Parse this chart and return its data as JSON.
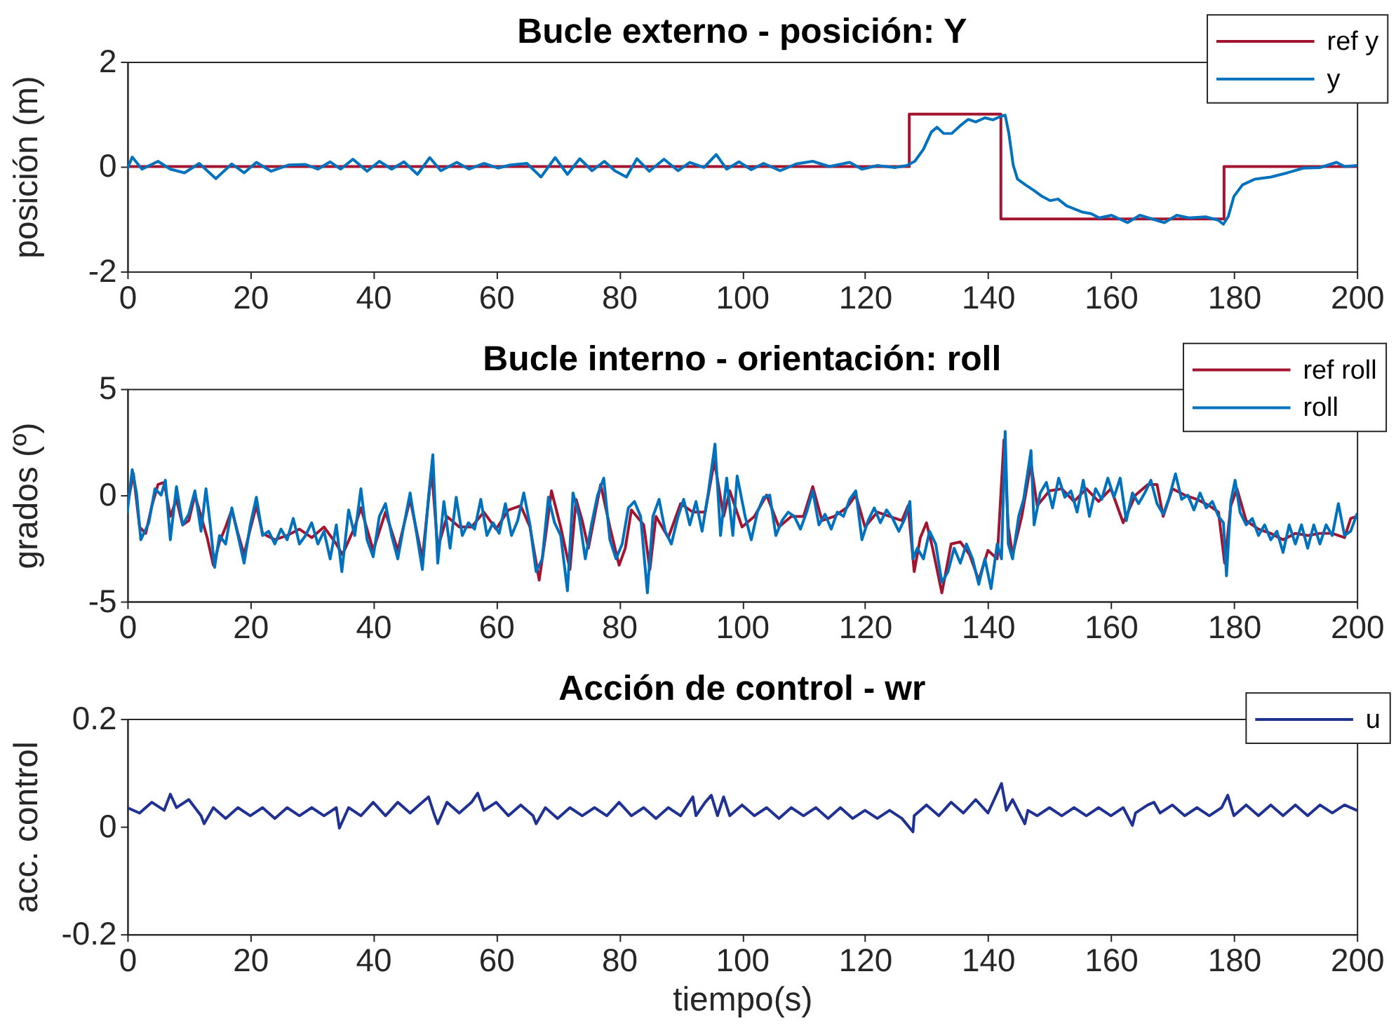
{
  "chart_data": [
    {
      "type": "line",
      "title": "Bucle externo - posición: Y",
      "ylabel": "posición (m)",
      "xlim": [
        0,
        200
      ],
      "xticks": [
        0,
        20,
        40,
        60,
        80,
        100,
        120,
        140,
        160,
        180,
        200
      ],
      "ylim": [
        -2,
        2
      ],
      "yticks": [
        -2,
        0,
        2
      ],
      "legend": "top right",
      "series": [
        {
          "name": "ref y",
          "type": "step",
          "color": "#a2142f",
          "x": [
            0,
            127.2,
            142.1,
            178.4,
            200
          ],
          "values": [
            0,
            1,
            -1,
            0,
            0
          ]
        },
        {
          "name": "y",
          "type": "line",
          "color": "#0072bd",
          "x": [
            0,
            0.8,
            2.4,
            5,
            7,
            9.3,
            11.7,
            14.4,
            17,
            19,
            21,
            23.4,
            26.3,
            29,
            31,
            33,
            34.7,
            36.7,
            39,
            41,
            43,
            45,
            47.2,
            49.2,
            51,
            53.6,
            55.6,
            58,
            60.3,
            62.3,
            65,
            67.3,
            69.6,
            71.6,
            73.6,
            75.6,
            77.6,
            79.3,
            81.2,
            82.9,
            84.9,
            87.3,
            89.6,
            91.5,
            93.8,
            95.8,
            97.5,
            99.5,
            101.5,
            103.5,
            106.2,
            108.8,
            111.5,
            114.2,
            117.5,
            119.5,
            122,
            124.8,
            126.8,
            128.1,
            129.5,
            130.8,
            131.7,
            132.8,
            134.1,
            135.5,
            136.8,
            138,
            139.5,
            140.8,
            142.1,
            142.8,
            143.4,
            144.1,
            144.8,
            146.1,
            147.4,
            148.8,
            150.1,
            151.4,
            152.8,
            154.1,
            155.4,
            156.8,
            158.1,
            160.1,
            162.7,
            164.7,
            166.7,
            168.7,
            170.7,
            172.7,
            175.4,
            177.4,
            178.3,
            179.1,
            180,
            181.4,
            183.4,
            186,
            188.7,
            191.3,
            194,
            196.7,
            198,
            200
          ],
          "values": [
            -0.05,
            0.18,
            -0.05,
            0.1,
            -0.05,
            -0.12,
            0.06,
            -0.23,
            0.05,
            -0.12,
            0.08,
            -0.09,
            0.03,
            0.04,
            -0.05,
            0.09,
            -0.05,
            0.14,
            -0.09,
            0.1,
            -0.05,
            0.09,
            -0.15,
            0.17,
            -0.08,
            0.08,
            -0.05,
            0.06,
            -0.03,
            0.03,
            0.06,
            -0.2,
            0.17,
            -0.15,
            0.15,
            -0.08,
            0.1,
            -0.08,
            -0.2,
            0.15,
            -0.09,
            0.14,
            -0.08,
            0.08,
            -0.02,
            0.23,
            -0.05,
            0.09,
            -0.06,
            0.06,
            -0.08,
            0.05,
            0.1,
            0,
            0.08,
            -0.05,
            0.02,
            -0.02,
            0.02,
            0.1,
            0.33,
            0.66,
            0.75,
            0.63,
            0.63,
            0.78,
            0.9,
            0.85,
            0.93,
            0.89,
            0.96,
            0.98,
            0.63,
            0.03,
            -0.24,
            -0.35,
            -0.45,
            -0.57,
            -0.65,
            -0.62,
            -0.75,
            -0.81,
            -0.87,
            -0.9,
            -0.98,
            -0.93,
            -1.07,
            -0.93,
            -1.0,
            -1.07,
            -0.93,
            -0.98,
            -0.96,
            -1.02,
            -1.1,
            -0.95,
            -0.57,
            -0.35,
            -0.24,
            -0.2,
            -0.12,
            -0.03,
            -0.02,
            0.08,
            0,
            0.02
          ]
        }
      ]
    },
    {
      "type": "line",
      "title": "Bucle interno - orientación: roll",
      "ylabel": "grados (º)",
      "xlim": [
        0,
        200
      ],
      "xticks": [
        0,
        20,
        40,
        60,
        80,
        100,
        120,
        140,
        160,
        180,
        200
      ],
      "ylim": [
        -5,
        5
      ],
      "yticks": [
        -5,
        0,
        5
      ],
      "legend": "top right",
      "series": [
        {
          "name": "ref roll",
          "type": "line",
          "color": "#a2142f",
          "x": [
            0,
            1,
            2,
            3,
            4,
            5,
            6,
            7,
            8,
            9,
            10,
            11,
            12,
            13,
            14,
            15,
            16,
            17,
            18,
            19,
            20,
            21,
            22,
            24,
            26,
            28,
            30,
            32,
            34,
            35,
            37,
            38,
            40,
            42,
            44,
            46,
            48,
            49.5,
            50.5,
            52,
            54,
            56,
            58,
            60,
            62,
            64,
            65.5,
            67,
            68,
            69,
            70.5,
            72,
            73,
            74,
            75,
            77,
            78.5,
            80,
            81,
            82,
            84,
            85,
            86,
            88,
            90,
            92,
            94,
            95.5,
            97,
            98,
            100,
            102,
            104,
            106,
            108,
            110,
            111.5,
            113,
            115,
            117,
            118.5,
            120,
            122,
            124,
            126,
            127,
            128,
            129,
            130,
            131,
            132.5,
            134,
            135.5,
            137,
            138.5,
            140,
            141.5,
            142.6,
            143.3,
            144,
            145.5,
            147,
            148,
            150,
            152,
            154,
            156,
            158,
            160,
            162,
            164,
            166,
            167.5,
            168.5,
            170,
            172,
            174,
            176,
            177.5,
            178.5,
            179.5,
            180.5,
            182,
            184,
            186,
            188,
            190,
            192,
            194,
            196,
            198,
            199,
            200
          ],
          "values": [
            -0.5,
            1.0,
            -1.5,
            -1.8,
            -0.5,
            0.5,
            0.6,
            -1.0,
            -0.2,
            -1.4,
            -1.2,
            0.0,
            -1.0,
            -2.0,
            -3.3,
            -2.2,
            -1.5,
            -0.7,
            -1.8,
            -2.8,
            -1.6,
            -0.5,
            -1.8,
            -2.1,
            -1.9,
            -1.6,
            -2.0,
            -1.5,
            -2.3,
            -2.8,
            -1.5,
            -0.6,
            -2.6,
            -0.8,
            -2.6,
            -0.2,
            -3.0,
            1.2,
            -2.5,
            -1.0,
            -1.5,
            -1.5,
            -0.8,
            -1.6,
            -0.7,
            -0.5,
            -1.5,
            -4.0,
            -2.0,
            0.2,
            -1.5,
            -3.5,
            -0.2,
            -1.2,
            -2.5,
            0.5,
            -1.5,
            -3.3,
            -2.5,
            -0.7,
            -1.4,
            -3.5,
            -1.0,
            -2.0,
            -0.4,
            -0.8,
            -0.8,
            1.6,
            -1.0,
            0.2,
            -1.5,
            -1.0,
            0.0,
            -1.5,
            -1.0,
            -1.0,
            0.4,
            -1.2,
            -1.0,
            -0.6,
            0.0,
            -1.5,
            -0.8,
            -1.0,
            -1.2,
            -0.5,
            -3.6,
            -2.0,
            -1.3,
            -2.5,
            -4.6,
            -2.3,
            -2.2,
            -2.8,
            -4.0,
            -2.6,
            -3.0,
            2.6,
            -1.5,
            -2.8,
            -1.0,
            1.5,
            -0.5,
            0.2,
            0.3,
            -0.3,
            0.3,
            -0.3,
            0.3,
            -1.3,
            0.0,
            0.5,
            0.5,
            -1.0,
            0.3,
            0.0,
            -0.2,
            -0.5,
            -0.8,
            -3.2,
            -0.5,
            0.3,
            -1.2,
            -1.6,
            -1.8,
            -2.1,
            -1.8,
            -1.9,
            -1.8,
            -1.8,
            -2.0,
            -1.1,
            -1.0
          ]
        },
        {
          "name": "roll",
          "type": "line",
          "color": "#0072bd",
          "x": [
            0,
            0.8,
            1.5,
            2.2,
            3.5,
            4.5,
            5.5,
            6.2,
            7,
            8,
            9,
            10,
            11,
            12,
            12.8,
            13.5,
            14.2,
            15,
            16,
            17,
            18,
            19,
            20,
            21,
            22,
            23,
            24,
            25,
            26,
            27,
            28,
            29,
            30,
            31,
            32,
            33,
            34,
            34.9,
            36,
            37,
            38,
            39,
            40,
            41,
            42,
            43,
            44,
            45,
            46,
            47,
            48,
            49,
            49.7,
            50.5,
            51.5,
            52.5,
            53.5,
            54.5,
            55.5,
            56.5,
            57.5,
            58.5,
            59.5,
            60.5,
            61.5,
            62.5,
            63.5,
            64.5,
            65.5,
            66.5,
            67.5,
            68.5,
            69.5,
            70.5,
            71.6,
            72.5,
            73.5,
            74.5,
            75.5,
            76.5,
            77.5,
            78.5,
            79.5,
            80.5,
            81.5,
            82.5,
            83.5,
            84.6,
            85.5,
            86.5,
            87.5,
            88.5,
            89.5,
            90.5,
            91.5,
            92.5,
            93.5,
            94.5,
            95.6,
            96.5,
            97.5,
            98.5,
            99.2,
            100.5,
            101.5,
            102.5,
            103.5,
            104.5,
            105.5,
            106.5,
            107.5,
            108.5,
            109.5,
            110.5,
            111.5,
            112.5,
            113.5,
            114.5,
            115.5,
            116.5,
            117.5,
            118.5,
            119.5,
            120.5,
            121.5,
            122.5,
            123.5,
            124.5,
            125.5,
            126.5,
            127.3,
            127.8,
            128.5,
            129.5,
            130.5,
            131.5,
            132.5,
            133.5,
            134.5,
            135.5,
            136.5,
            137.5,
            138.5,
            139.5,
            140.5,
            141.5,
            142.2,
            142.8,
            143.3,
            144,
            145,
            145.8,
            147,
            147.5,
            148.5,
            149.5,
            150.5,
            151.5,
            152.5,
            153.5,
            154.5,
            155.5,
            156.5,
            157.5,
            158.5,
            159.5,
            160.5,
            161.5,
            162.5,
            163.5,
            164.5,
            165.5,
            166.5,
            167.5,
            168.5,
            169.5,
            170.5,
            171.5,
            172.5,
            173.5,
            174.5,
            175.5,
            176.5,
            177.5,
            178.3,
            178.8,
            179.5,
            180.2,
            181,
            182,
            183,
            184,
            185,
            186,
            187,
            188,
            189,
            190,
            191,
            192,
            193,
            194,
            195,
            196,
            197,
            198,
            199,
            200
          ],
          "values": [
            -0.8,
            1.2,
            0.1,
            -2.1,
            -1.3,
            0.3,
            0,
            0.7,
            -2.1,
            0.4,
            -1.4,
            -0.9,
            0.2,
            -1.7,
            0.3,
            -1.4,
            -3.4,
            -1.9,
            -2.3,
            -0.6,
            -1.9,
            -3.2,
            -1.4,
            -0.1,
            -1.9,
            -1.7,
            -2.3,
            -1.6,
            -2.1,
            -1.1,
            -2.3,
            -1.9,
            -1.3,
            -2.3,
            -1.7,
            -3.0,
            -1.4,
            -3.6,
            -0.7,
            -1.9,
            0.3,
            -2.1,
            -2.9,
            -1.0,
            -0.4,
            -1.9,
            -3.0,
            -1.4,
            0.1,
            -1.7,
            -3.5,
            -0.1,
            1.9,
            -3.2,
            -0.3,
            -2.5,
            -0.1,
            -1.9,
            -1.3,
            -1.6,
            -0.2,
            -1.9,
            -1.3,
            -1.8,
            -0.4,
            -1.9,
            -1.2,
            0.1,
            -1.4,
            -3.6,
            -3.0,
            -0.1,
            -1.3,
            -1.9,
            -4.5,
            0.1,
            -1.0,
            -3.0,
            -1.4,
            0,
            0.8,
            -2.1,
            -3.0,
            -2.3,
            -0.6,
            -0.3,
            -1.0,
            -4.6,
            -1.0,
            -0.2,
            -1.7,
            -2.3,
            -1.1,
            -0.2,
            -1.4,
            -0.3,
            -1.7,
            0.1,
            2.4,
            -1.9,
            0.8,
            -1.9,
            0.9,
            -1.0,
            -2.1,
            -0.8,
            -0.1,
            0,
            -1.9,
            -1.2,
            -0.8,
            -1.0,
            -1.6,
            -0.8,
            0.2,
            -1.4,
            -0.9,
            -1.6,
            -0.8,
            -1.0,
            -0.2,
            0.2,
            -2.1,
            -1.2,
            -0.6,
            -1.3,
            -0.7,
            -1.1,
            -1.7,
            -1.1,
            -0.3,
            -3.0,
            -2.5,
            -3.0,
            -1.7,
            -2.3,
            -4.1,
            -3.6,
            -2.5,
            -3.2,
            -2.3,
            -3.0,
            -4.2,
            -3.0,
            -4.4,
            -2.3,
            -3.0,
            3.0,
            -2.3,
            -3.0,
            -1.0,
            -0.2,
            2.1,
            -1.4,
            0.1,
            0.6,
            -0.6,
            0.8,
            -0.1,
            0.2,
            -0.8,
            0.7,
            -1.0,
            0.3,
            -0.2,
            0.8,
            -0.1,
            0.8,
            -1.2,
            0.1,
            -0.4,
            0.1,
            0.7,
            -0.4,
            -0.9,
            -0.1,
            1.0,
            -0.2,
            0,
            -0.7,
            0.1,
            -0.6,
            -0.3,
            -1.0,
            -1.3,
            -3.8,
            -0.3,
            0.7,
            -0.8,
            -1.4,
            -1.1,
            -1.9,
            -1.4,
            -2.1,
            -1.7,
            -2.7,
            -1.4,
            -2.3,
            -1.4,
            -2.5,
            -1.4,
            -2.3,
            -1.4,
            -1.9,
            -0.4,
            -1.9,
            -1.7,
            -0.9
          ]
        }
      ]
    },
    {
      "type": "line",
      "title": "Acción de control - wr",
      "xlabel": "tiempo(s)",
      "ylabel": "acc. control",
      "xlim": [
        0,
        200
      ],
      "xticks": [
        0,
        20,
        40,
        60,
        80,
        100,
        120,
        140,
        160,
        180,
        200
      ],
      "ylim": [
        -0.2,
        0.2
      ],
      "yticks": [
        -0.2,
        0,
        0.2
      ],
      "legend": "top right",
      "series": [
        {
          "name": "u",
          "type": "line",
          "color": "#1f3192",
          "x": [
            0,
            2,
            4,
            6,
            7,
            8,
            10,
            12,
            12.5,
            14,
            16,
            18,
            20,
            22,
            24,
            26,
            28,
            30,
            32,
            34,
            34.5,
            36,
            38,
            40,
            42,
            44,
            46,
            48,
            49,
            50,
            50.5,
            52,
            54,
            56,
            57,
            58,
            60,
            62,
            64,
            66,
            66.5,
            68,
            70,
            72,
            74,
            76,
            78,
            80,
            82,
            84,
            86,
            88,
            90,
            92,
            92.5,
            94,
            95,
            96,
            97,
            98,
            100,
            102,
            104,
            106,
            108,
            110,
            112,
            114,
            116,
            118,
            120,
            122,
            124,
            126,
            127.8,
            128,
            130,
            132,
            134,
            136,
            138,
            140,
            142.2,
            143,
            144,
            146,
            146.5,
            148,
            150,
            152,
            154,
            156,
            158,
            160,
            162,
            163.5,
            164,
            166,
            167,
            168,
            170,
            172,
            174,
            176,
            178,
            179,
            180,
            182,
            184,
            186,
            188,
            190,
            192,
            194,
            196,
            198,
            200
          ],
          "values": [
            0.035,
            0.025,
            0.045,
            0.03,
            0.06,
            0.035,
            0.05,
            0.02,
            0.005,
            0.035,
            0.015,
            0.035,
            0.02,
            0.035,
            0.015,
            0.035,
            0.02,
            0.035,
            0.02,
            0.035,
            -0.003,
            0.035,
            0.02,
            0.045,
            0.02,
            0.045,
            0.025,
            0.045,
            0.055,
            0.02,
            0.005,
            0.045,
            0.025,
            0.045,
            0.062,
            0.03,
            0.045,
            0.02,
            0.04,
            0.02,
            0.005,
            0.035,
            0.015,
            0.035,
            0.02,
            0.035,
            0.02,
            0.045,
            0.02,
            0.035,
            0.015,
            0.035,
            0.02,
            0.055,
            0.02,
            0.045,
            0.058,
            0.02,
            0.055,
            0.02,
            0.04,
            0.02,
            0.035,
            0.015,
            0.035,
            0.02,
            0.035,
            0.015,
            0.035,
            0.015,
            0.03,
            0.015,
            0.03,
            0.015,
            -0.01,
            0.02,
            0.04,
            0.02,
            0.045,
            0.025,
            0.05,
            0.025,
            0.08,
            0.03,
            0.05,
            0.005,
            0.03,
            0.02,
            0.035,
            0.02,
            0.035,
            0.02,
            0.035,
            0.02,
            0.035,
            0.002,
            0.025,
            0.04,
            0.045,
            0.025,
            0.04,
            0.02,
            0.035,
            0.02,
            0.035,
            0.058,
            0.02,
            0.04,
            0.02,
            0.04,
            0.02,
            0.04,
            0.02,
            0.04,
            0.025,
            0.04,
            0.03
          ]
        }
      ]
    }
  ]
}
